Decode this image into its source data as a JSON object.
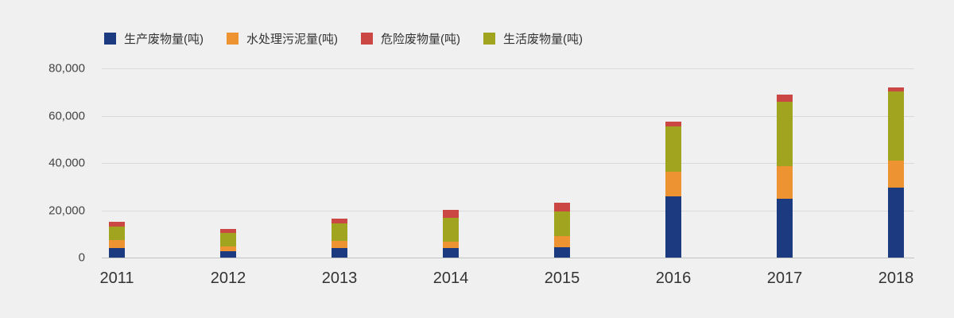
{
  "chart": {
    "background_color": "#f0f0f0",
    "gridline_color": "#d9d9d9",
    "axis_line_color": "#c2c2c2",
    "legend_text_color": "#333333",
    "axis_text_color": "#444444"
  },
  "chart_data": {
    "type": "bar",
    "stacked": true,
    "title": "",
    "xlabel": "",
    "ylabel": "",
    "categories": [
      "2011",
      "2012",
      "2013",
      "2014",
      "2015",
      "2016",
      "2017",
      "2018"
    ],
    "series": [
      {
        "name": "生产废物量(吨)",
        "color": "#1b3a80",
        "values": [
          3900,
          2700,
          4000,
          3900,
          4400,
          26000,
          24800,
          29500
        ]
      },
      {
        "name": "水处理污泥量(吨)",
        "color": "#ee9331",
        "values": [
          3400,
          2200,
          3100,
          3000,
          4700,
          10300,
          13700,
          11500
        ]
      },
      {
        "name": "危险废物量(吨)",
        "color": "#cb4744",
        "values": [
          1900,
          1800,
          1800,
          3100,
          3600,
          2200,
          2900,
          1800
        ]
      },
      {
        "name": "生活废物量(吨)",
        "color": "#a0a41e",
        "values": [
          5900,
          5400,
          7500,
          10100,
          10500,
          19100,
          27400,
          29100
        ]
      }
    ],
    "stack_order_bottom_to_top": [
      "生产废物量(吨)",
      "水处理污泥量(吨)",
      "生活废物量(吨)",
      "危险废物量(吨)"
    ],
    "totals": [
      15100,
      12100,
      16400,
      20100,
      23200,
      57600,
      68800,
      71900
    ],
    "values_estimated_from_pixels": true,
    "y_axis": {
      "min": 0,
      "max": 80000,
      "tick_step": 20000,
      "tick_labels": [
        "0",
        "20,000",
        "40,000",
        "60,000",
        "80,000"
      ]
    },
    "legend_position": "top-left",
    "grid": true
  }
}
